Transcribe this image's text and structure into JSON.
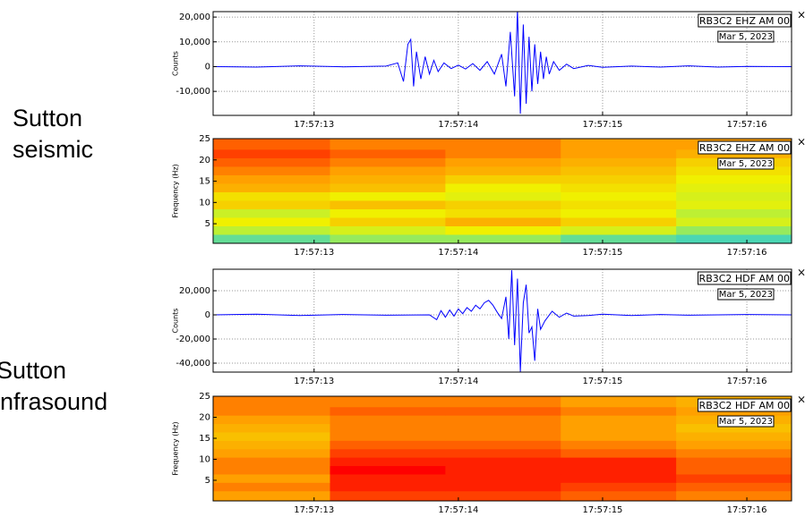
{
  "side_labels": [
    [
      "Sutton",
      "seismic"
    ],
    [
      "Sutton",
      "infrasound"
    ]
  ],
  "chart_data": [
    {
      "type": "line",
      "ylabel": "Counts",
      "station": "RB3C2 EHZ AM 00",
      "date": "Mar 5, 2023",
      "close": "×",
      "color": "#0000ff",
      "grid": true,
      "xlim": [
        12.3,
        16.31
      ],
      "xticks": [
        {
          "value": 13,
          "label": "17:57:13"
        },
        {
          "value": 14,
          "label": "17:57:14"
        },
        {
          "value": 15,
          "label": "17:57:15"
        },
        {
          "value": 16,
          "label": "17:57:16"
        }
      ],
      "ylim": [
        -19700,
        22200
      ],
      "yticks": [
        {
          "value": 20000,
          "label": "20,000"
        },
        {
          "value": 10000,
          "label": "10,000"
        },
        0,
        {
          "value": -10000,
          "label": "-10,000"
        }
      ],
      "x": [
        12.3,
        12.6,
        12.9,
        13.2,
        13.5,
        13.58,
        13.62,
        13.65,
        13.67,
        13.69,
        13.71,
        13.74,
        13.77,
        13.8,
        13.83,
        13.86,
        13.9,
        13.95,
        14.0,
        14.05,
        14.1,
        14.15,
        14.2,
        14.25,
        14.3,
        14.33,
        14.36,
        14.39,
        14.41,
        14.43,
        14.45,
        14.47,
        14.49,
        14.51,
        14.53,
        14.55,
        14.57,
        14.59,
        14.61,
        14.63,
        14.66,
        14.7,
        14.75,
        14.8,
        14.9,
        15.0,
        15.2,
        15.4,
        15.6,
        15.8,
        16.0,
        16.31
      ],
      "values": [
        0,
        -200,
        300,
        -100,
        200,
        1500,
        -6000,
        9000,
        11000,
        -8000,
        6000,
        -5000,
        4000,
        -3000,
        2500,
        -2000,
        1500,
        -800,
        600,
        -1000,
        1200,
        -1500,
        2000,
        -3000,
        5000,
        -8000,
        14000,
        -12000,
        23000,
        -19000,
        17000,
        -15000,
        12000,
        -10000,
        9000,
        -7000,
        6000,
        -5000,
        4000,
        -3000,
        2000,
        -1500,
        1000,
        -800,
        500,
        -300,
        200,
        -200,
        300,
        -200,
        100,
        0
      ]
    },
    {
      "type": "heatmap",
      "ylabel": "Frequency (Hz)",
      "station": "RB3C2 EHZ AM 00",
      "date": "Mar 5, 2023",
      "close": "×",
      "colormap": [
        "#30d0d0",
        "#b0f040",
        "#f0f000",
        "#ffa000",
        "#ff0000"
      ],
      "xlim": [
        12.3,
        16.31
      ],
      "xticks": [
        {
          "value": 13,
          "label": "17:57:13"
        },
        {
          "value": 14,
          "label": "17:57:14"
        },
        {
          "value": 15,
          "label": "17:57:15"
        },
        {
          "value": 16,
          "label": "17:57:16"
        }
      ],
      "ylim": [
        0.4,
        25
      ],
      "yticks": [
        5,
        10,
        15,
        20,
        25
      ],
      "time_bins": [
        12.3,
        13.11,
        13.91,
        14.71,
        15.51,
        16.31
      ],
      "freq_bins": [
        0.4,
        2.5,
        4.5,
        6.5,
        8.5,
        10.5,
        12.5,
        14.5,
        16.5,
        18.5,
        20.5,
        22.5,
        25
      ],
      "values": [
        [
          0.1,
          0.2,
          0.2,
          0.1,
          0.05
        ],
        [
          0.3,
          0.4,
          0.5,
          0.4,
          0.2
        ],
        [
          0.5,
          0.6,
          0.7,
          0.6,
          0.4
        ],
        [
          0.35,
          0.5,
          0.55,
          0.5,
          0.3
        ],
        [
          0.6,
          0.65,
          0.6,
          0.55,
          0.45
        ],
        [
          0.55,
          0.5,
          0.45,
          0.5,
          0.4
        ],
        [
          0.7,
          0.65,
          0.5,
          0.55,
          0.45
        ],
        [
          0.75,
          0.7,
          0.6,
          0.6,
          0.5
        ],
        [
          0.8,
          0.75,
          0.7,
          0.65,
          0.55
        ],
        [
          0.85,
          0.8,
          0.75,
          0.7,
          0.6
        ],
        [
          0.9,
          0.85,
          0.8,
          0.75,
          0.7
        ],
        [
          0.85,
          0.8,
          0.8,
          0.75,
          0.75
        ]
      ]
    },
    {
      "type": "line",
      "ylabel": "Counts",
      "station": "RB3C2 HDF AM 00",
      "date": "Mar 5, 2023",
      "close": "×",
      "color": "#0000ff",
      "grid": true,
      "xlim": [
        12.3,
        16.31
      ],
      "xticks": [
        {
          "value": 13,
          "label": "17:57:13"
        },
        {
          "value": 14,
          "label": "17:57:14"
        },
        {
          "value": 15,
          "label": "17:57:15"
        },
        {
          "value": 16,
          "label": "17:57:16"
        }
      ],
      "ylim": [
        -47400,
        37800
      ],
      "yticks": [
        {
          "value": 20000,
          "label": "20,000"
        },
        0,
        {
          "value": -20000,
          "label": "-20,000"
        },
        {
          "value": -40000,
          "label": "-40,000"
        }
      ],
      "x": [
        12.3,
        12.6,
        12.9,
        13.2,
        13.5,
        13.8,
        13.85,
        13.88,
        13.91,
        13.94,
        13.97,
        14.0,
        14.03,
        14.06,
        14.09,
        14.12,
        14.15,
        14.18,
        14.21,
        14.24,
        14.27,
        14.3,
        14.33,
        14.35,
        14.37,
        14.39,
        14.41,
        14.43,
        14.45,
        14.47,
        14.49,
        14.51,
        14.53,
        14.55,
        14.57,
        14.6,
        14.65,
        14.7,
        14.75,
        14.8,
        14.9,
        15.0,
        15.2,
        15.4,
        15.6,
        15.8,
        16.0,
        16.31
      ],
      "values": [
        0,
        500,
        -500,
        300,
        -300,
        0,
        -4000,
        3500,
        -2000,
        4000,
        -1000,
        5000,
        1000,
        6000,
        3000,
        8000,
        5000,
        10000,
        12000,
        8000,
        2000,
        -3000,
        15000,
        -20000,
        37000,
        -25000,
        30000,
        -47000,
        10000,
        25000,
        -15000,
        -10000,
        -38000,
        5000,
        -12000,
        -5000,
        3000,
        -2000,
        1500,
        -1000,
        -500,
        500,
        -500,
        300,
        -300,
        0,
        300,
        0
      ]
    },
    {
      "type": "heatmap",
      "ylabel": "Frequency (Hz)",
      "station": "RB3C2 HDF AM 00",
      "date": "Mar 5, 2023",
      "close": "×",
      "colormap": [
        "#30d0d0",
        "#b0f040",
        "#f0f000",
        "#ffa000",
        "#ff0000"
      ],
      "xlim": [
        12.3,
        16.31
      ],
      "xticks": [
        {
          "value": 13,
          "label": "17:57:13"
        },
        {
          "value": 14,
          "label": "17:57:14"
        },
        {
          "value": 15,
          "label": "17:57:15"
        },
        {
          "value": 16,
          "label": "17:57:16"
        }
      ],
      "ylim": [
        0.1,
        25
      ],
      "yticks": [
        5,
        10,
        15,
        20,
        25
      ],
      "time_bins": [
        12.3,
        13.11,
        13.91,
        14.71,
        15.51,
        16.31
      ],
      "freq_bins": [
        0.1,
        2.5,
        4.5,
        6.5,
        8.5,
        10.5,
        12.5,
        14.5,
        16.5,
        18.5,
        20.5,
        22.5,
        25
      ],
      "values": [
        [
          0.75,
          0.9,
          0.9,
          0.85,
          0.8
        ],
        [
          0.8,
          0.95,
          0.95,
          0.9,
          0.85
        ],
        [
          0.75,
          0.95,
          0.95,
          0.95,
          0.9
        ],
        [
          0.8,
          1,
          0.95,
          0.95,
          0.85
        ],
        [
          0.8,
          0.95,
          0.95,
          0.95,
          0.85
        ],
        [
          0.75,
          0.9,
          0.9,
          0.85,
          0.8
        ],
        [
          0.7,
          0.85,
          0.85,
          0.8,
          0.75
        ],
        [
          0.65,
          0.8,
          0.8,
          0.75,
          0.7
        ],
        [
          0.7,
          0.8,
          0.8,
          0.75,
          0.65
        ],
        [
          0.75,
          0.8,
          0.8,
          0.75,
          0.7
        ],
        [
          0.8,
          0.85,
          0.85,
          0.8,
          0.75
        ],
        [
          0.8,
          0.8,
          0.8,
          0.75,
          0.7
        ]
      ]
    }
  ]
}
